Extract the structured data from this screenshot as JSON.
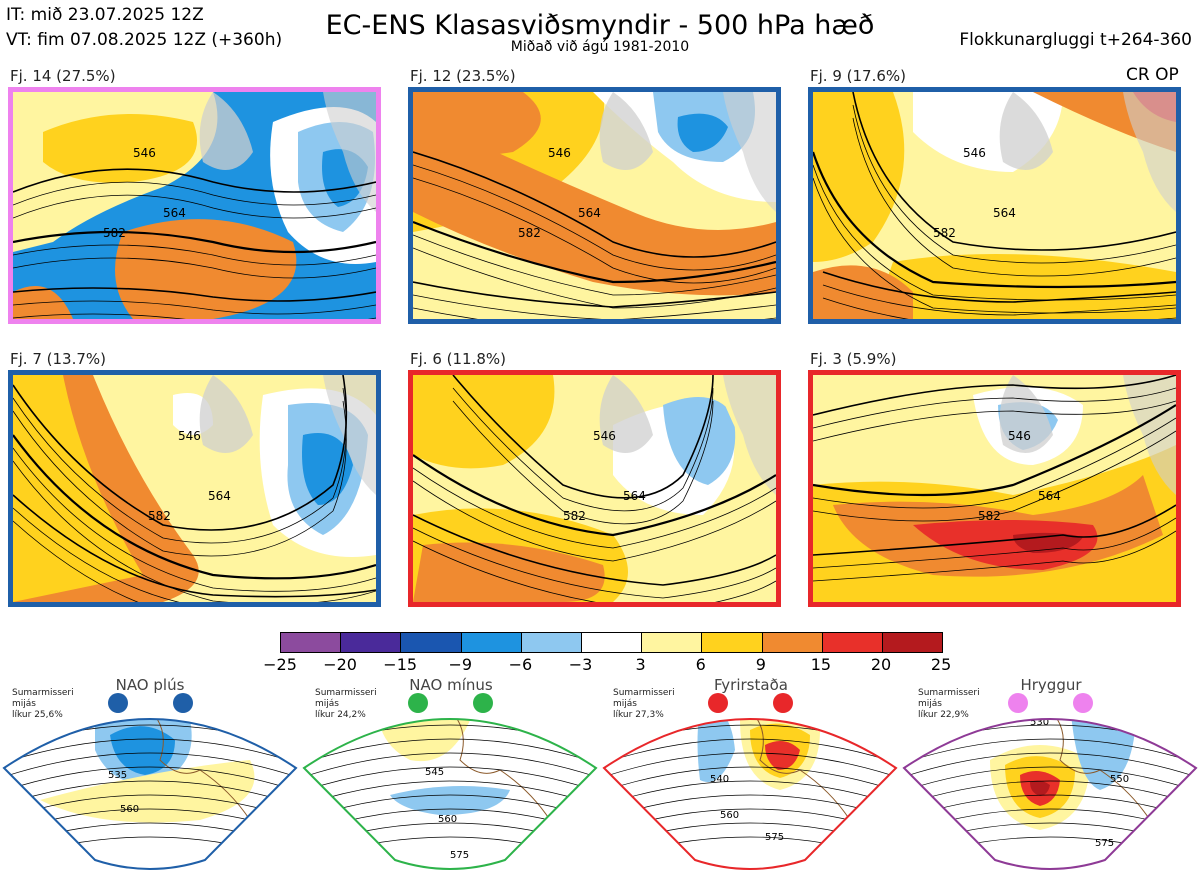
{
  "header": {
    "it_line": "IT: mið 23.07.2025 12Z",
    "vt_line": "VT: fim 07.08.2025 12Z  (+360h)",
    "title": "EC-ENS Klasasviðsmyndir - 500 hPa hæð",
    "subtitle": "Miðað við ágú 1981-2010",
    "right": "Flokkunargluggi t+264-360",
    "crop": "CR OP"
  },
  "clusters": [
    {
      "label": "Fj. 14 (27.5%)",
      "frame": "#ee82ee",
      "contours": [
        "546",
        "564",
        "582"
      ]
    },
    {
      "label": "Fj. 12 (23.5%)",
      "frame": "#1f5fa8",
      "contours": [
        "546",
        "564",
        "582"
      ]
    },
    {
      "label": "Fj. 9 (17.6%)",
      "frame": "#1f5fa8",
      "contours": [
        "546",
        "564",
        "582"
      ]
    },
    {
      "label": "Fj. 7 (13.7%)",
      "frame": "#1f5fa8",
      "contours": [
        "546",
        "564",
        "582"
      ]
    },
    {
      "label": "Fj. 6 (11.8%)",
      "frame": "#e8272a",
      "contours": [
        "546",
        "564",
        "582"
      ]
    },
    {
      "label": "Fj. 3 (5.9%)",
      "frame": "#e8272a",
      "contours": [
        "546",
        "564",
        "582"
      ]
    }
  ],
  "colorbar": {
    "colors": [
      "#8c4b9e",
      "#4a2a9a",
      "#1a56b0",
      "#1e93e0",
      "#8ec8f0",
      "#ffffff",
      "#fff5a0",
      "#ffd21e",
      "#f08a30",
      "#e8302a",
      "#b41a1e"
    ],
    "ticks": [
      "−25",
      "−20",
      "−15",
      "−9",
      "−6",
      "−3",
      "3",
      "6",
      "9",
      "15",
      "20",
      "25"
    ]
  },
  "chart_data": {
    "type": "heatmap",
    "title": "EC-ENS Klasasviðsmyndir - 500 hPa hæð",
    "subtitle": "Miðað við ágú 1981-2010",
    "panels": [
      {
        "label": "Fj. 14 (27.5%)",
        "probability": 27.5,
        "regime_frame": "Hryggur"
      },
      {
        "label": "Fj. 12 (23.5%)",
        "probability": 23.5,
        "regime_frame": "NAO plús"
      },
      {
        "label": "Fj. 9 (17.6%)",
        "probability": 17.6,
        "regime_frame": "NAO plús"
      },
      {
        "label": "Fj. 7 (13.7%)",
        "probability": 13.7,
        "regime_frame": "NAO plús"
      },
      {
        "label": "Fj. 6 (11.8%)",
        "probability": 11.8,
        "regime_frame": "Fyrirstaða"
      },
      {
        "label": "Fj. 3 (5.9%)",
        "probability": 5.9,
        "regime_frame": "Fyrirstaða"
      }
    ],
    "colorbar_ticks": [
      -25,
      -20,
      -15,
      -9,
      -6,
      -3,
      3,
      6,
      9,
      15,
      20,
      25
    ]
  },
  "regimes": [
    {
      "name": "NAO plús",
      "line1": "Sumarmisseri",
      "line2": "mijás",
      "line3": "líkur 25,6%",
      "color": "#1f5fa8",
      "contours": [
        "535",
        "560"
      ]
    },
    {
      "name": "NAO mínus",
      "line1": "Sumarmisseri",
      "line2": "mijás",
      "line3": "líkur 24,2%",
      "color": "#2db34a",
      "contours": [
        "545",
        "560",
        "575"
      ]
    },
    {
      "name": "Fyrirstaða",
      "line1": "Sumarmisseri",
      "line2": "mijás",
      "line3": "líkur 27,3%",
      "color": "#e8272a",
      "contours": [
        "540",
        "560",
        "575"
      ]
    },
    {
      "name": "Hryggur",
      "line1": "Sumarmisseri",
      "line2": "mijás",
      "line3": "líkur 22,9%",
      "color": "#ee82ee",
      "frame": "#8e3a96",
      "contours": [
        "530",
        "550",
        "575"
      ]
    }
  ]
}
